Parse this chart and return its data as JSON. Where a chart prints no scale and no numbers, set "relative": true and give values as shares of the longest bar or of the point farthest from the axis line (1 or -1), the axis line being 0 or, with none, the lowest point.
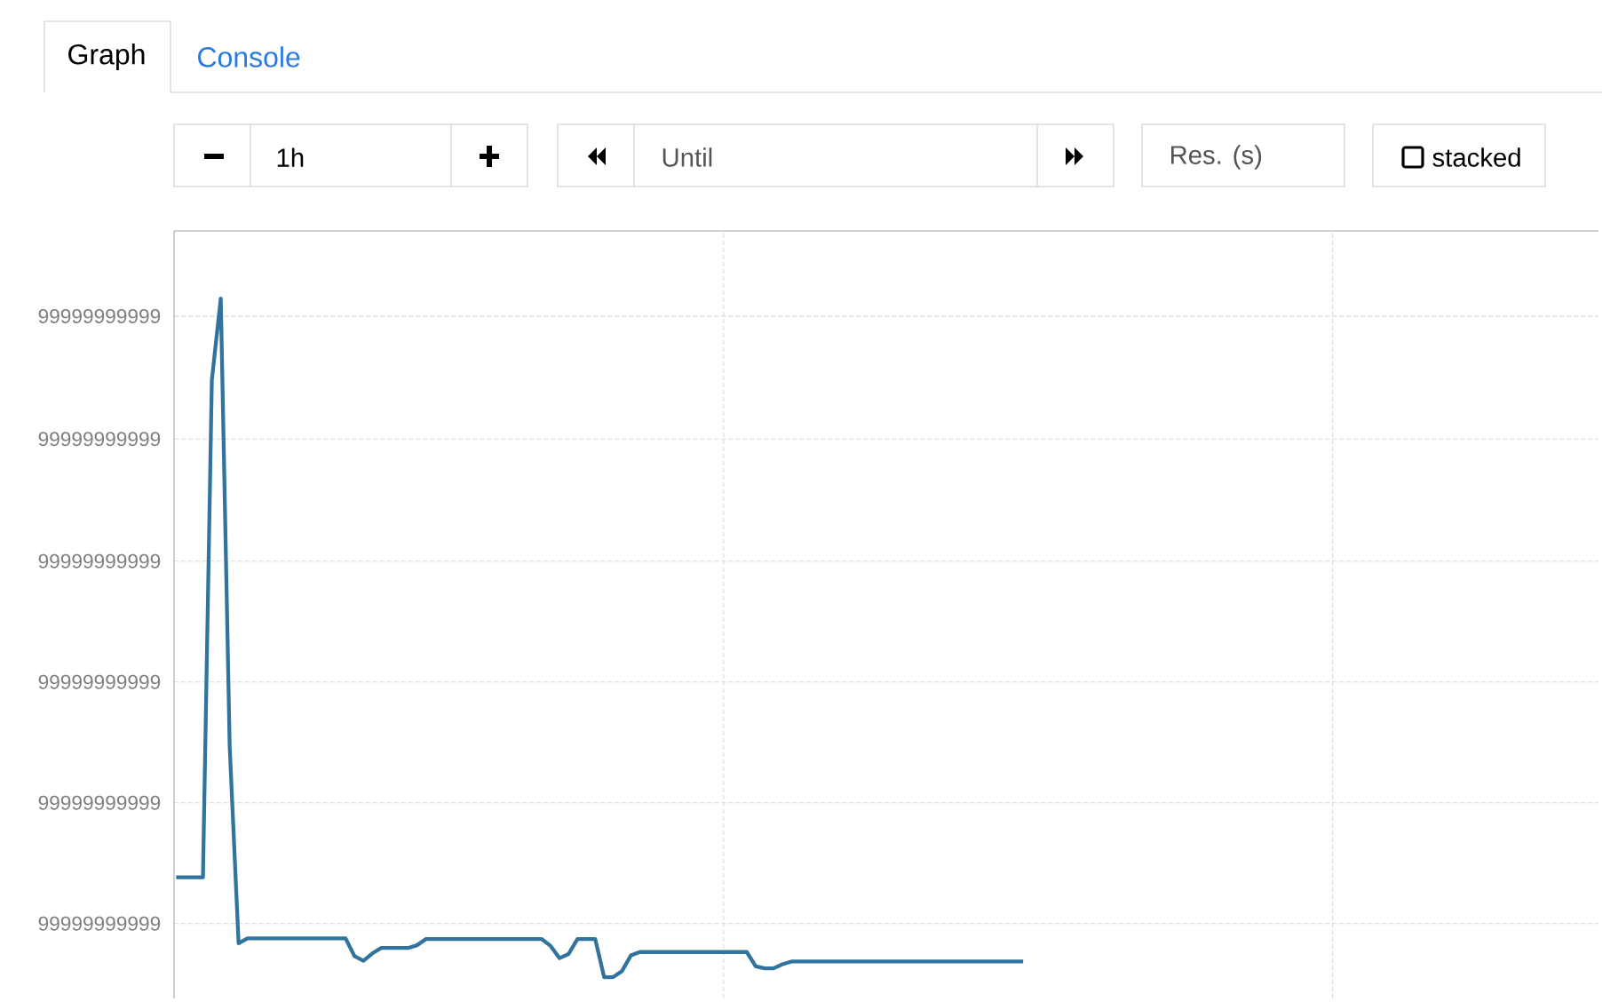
{
  "chart_data": {
    "type": "line",
    "relative": true,
    "grid": true,
    "color": "#31739c",
    "line_style": "solid",
    "marker": "none",
    "categories": [
      null,
      null,
      null,
      null,
      null,
      null,
      null,
      null,
      null,
      null,
      null,
      null,
      null,
      null,
      null,
      null,
      null,
      null,
      null,
      null,
      null,
      null,
      null,
      null,
      null,
      null,
      null,
      null,
      null,
      null,
      null,
      null,
      null,
      null,
      null,
      null,
      null,
      null,
      null,
      null,
      null,
      null,
      null,
      null,
      null,
      null,
      null,
      null,
      null,
      null,
      null,
      null,
      null,
      null,
      null,
      null,
      null,
      null,
      null,
      null,
      null,
      null,
      null,
      null,
      null,
      null,
      null,
      null,
      null,
      null,
      null,
      null,
      null,
      null,
      null,
      null,
      null,
      null,
      null,
      null,
      null,
      null,
      null,
      null,
      null,
      null,
      null,
      null,
      null,
      null,
      null,
      null,
      null,
      null,
      null,
      null
    ],
    "values": [
      0.147,
      0.147,
      0.147,
      0.147,
      0.88,
      1,
      0.34,
      0.05,
      0.057,
      0.057,
      0.057,
      0.057,
      0.057,
      0.057,
      0.057,
      0.057,
      0.057,
      0.057,
      0.057,
      0.057,
      0.031,
      0.024,
      0.035,
      0.043,
      0.043,
      0.043,
      0.043,
      0.047,
      0.056,
      0.056,
      0.056,
      0.056,
      0.056,
      0.056,
      0.056,
      0.056,
      0.056,
      0.056,
      0.056,
      0.056,
      0.056,
      0.056,
      0.046,
      0.028,
      0.034,
      0.056,
      0.056,
      0.056,
      0,
      0,
      0.009,
      0.032,
      0.037,
      0.037,
      0.037,
      0.037,
      0.037,
      0.037,
      0.037,
      0.037,
      0.037,
      0.037,
      0.037,
      0.037,
      0.037,
      0.016,
      0.013,
      0.013,
      0.019,
      0.023,
      0.023,
      0.023,
      0.023,
      0.023,
      0.023,
      0.023,
      0.023,
      0.023,
      0.023,
      0.023,
      0.023,
      0.023,
      0.023,
      0.023,
      0.023,
      0.023,
      0.023,
      0.023,
      0.023,
      0.023,
      0.023,
      0.023,
      0.023,
      0.023,
      0.023,
      0.023
    ],
    "annotations": [
      "Graph",
      "Console",
      "1h",
      "Until",
      "Res. (s)",
      "stacked",
      "99999999999",
      "99999999999",
      "99999999999",
      "99999999999",
      "99999999999",
      "99999999999"
    ]
  }
}
